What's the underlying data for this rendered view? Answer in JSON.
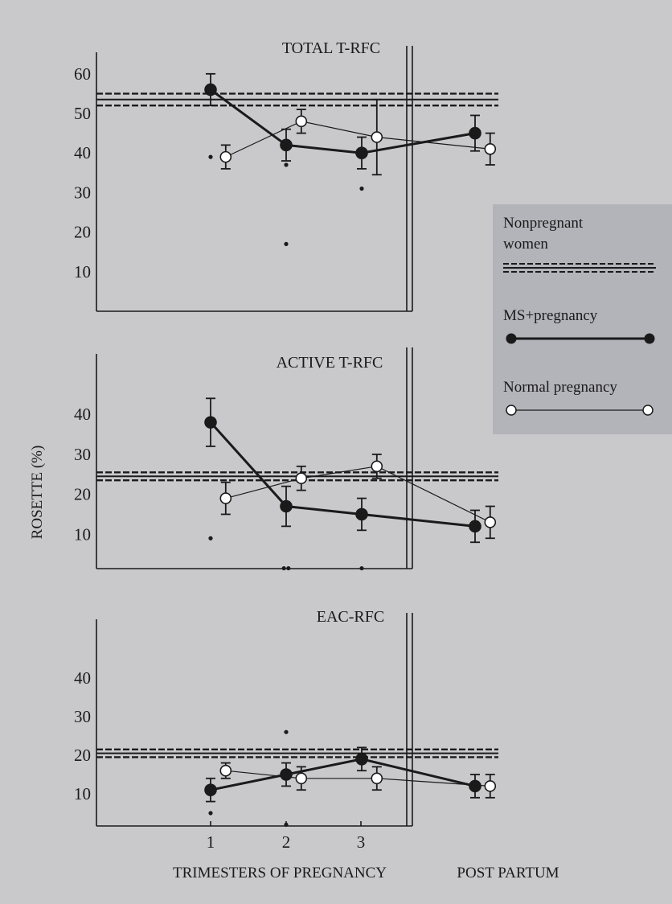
{
  "chart_data": [
    {
      "type": "line",
      "title": "TOTAL T-RFC",
      "ylabel": "ROSETTE (%)",
      "y_ticks": [
        "10",
        "20",
        "30",
        "40",
        "50",
        "60"
      ],
      "x_categories": [
        "1",
        "2",
        "3"
      ],
      "x_category_label": "TRIMESTERS OF PREGNANCY",
      "x_post_label": "POST PARTUM",
      "nonpregnant_band": [
        52,
        55
      ],
      "series": [
        {
          "name": "MS+pregnancy",
          "x": [
            1,
            2,
            3,
            4.5
          ],
          "y": [
            56,
            42,
            40,
            45
          ],
          "err": [
            4,
            4,
            4,
            4.5
          ]
        },
        {
          "name": "Normal pregnancy",
          "x": [
            1.2,
            2.2,
            3.2,
            4.7
          ],
          "y": [
            39,
            48,
            44,
            41
          ],
          "err": [
            3,
            3,
            9.5,
            4
          ]
        }
      ],
      "outliers": [
        [
          1,
          39
        ],
        [
          2,
          37
        ],
        [
          2,
          17
        ],
        [
          3,
          31
        ]
      ]
    },
    {
      "type": "line",
      "title": "ACTIVE T-RFC",
      "y_ticks": [
        "10",
        "20",
        "30",
        "40"
      ],
      "nonpregnant_band": [
        23.5,
        25.5
      ],
      "series": [
        {
          "name": "MS+pregnancy",
          "x": [
            1,
            2,
            3,
            4.5
          ],
          "y": [
            38,
            17,
            15,
            12
          ],
          "err": [
            6,
            5,
            4,
            4
          ]
        },
        {
          "name": "Normal pregnancy",
          "x": [
            1.2,
            2.2,
            3.2,
            4.7
          ],
          "y": [
            19,
            24,
            27,
            13
          ],
          "err": [
            4,
            3,
            3,
            4
          ]
        }
      ],
      "outliers": [
        [
          1,
          9
        ],
        [
          1.97,
          1.5
        ],
        [
          2.03,
          1.5
        ],
        [
          3,
          1.5
        ]
      ]
    },
    {
      "type": "line",
      "title": "EAC-RFC",
      "y_ticks": [
        "10",
        "20",
        "30",
        "40"
      ],
      "nonpregnant_band": [
        19.5,
        21.5
      ],
      "series": [
        {
          "name": "MS+pregnancy",
          "x": [
            1,
            2,
            3,
            4.5
          ],
          "y": [
            11,
            15,
            19,
            12
          ],
          "err": [
            3,
            3,
            3,
            3
          ]
        },
        {
          "name": "Normal pregnancy",
          "x": [
            1.2,
            2.2,
            3.2,
            4.7
          ],
          "y": [
            16,
            14,
            14,
            12
          ],
          "err": [
            2,
            3,
            3,
            3
          ]
        }
      ],
      "outliers": [
        [
          1,
          5
        ],
        [
          2,
          26
        ],
        [
          2,
          2
        ]
      ]
    }
  ],
  "legend": {
    "nonpregnant_label_line1": "Nonpregnant",
    "nonpregnant_label_line2": "women",
    "ms_label": "MS+pregnancy",
    "normal_label": "Normal pregnancy"
  },
  "colors": {
    "background": "#c9c9cc",
    "legend_box": "#b3b3ba",
    "ink": "#1a1a1a",
    "open_marker": "#ffffff"
  }
}
